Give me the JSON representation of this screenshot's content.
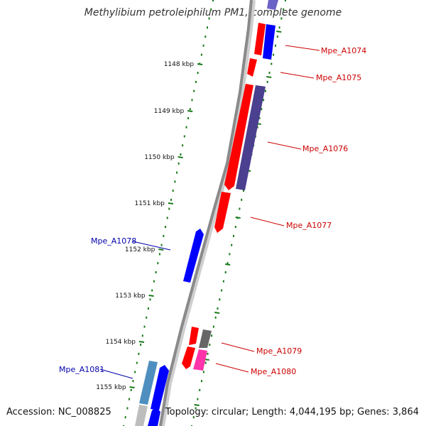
{
  "title": "Methylibium petroleiphilum PM1, complete genome",
  "accession_text": "Accession: NC_008825",
  "stats_text": "Topology: circular; Length: 4,044,195 bp; Genes: 3,864",
  "scale_ticks": [
    "1148 kbp",
    "1149 kbp",
    "1150 kbp",
    "1151 kbp",
    "1152 kbp",
    "1153 kbp",
    "1154 kbp",
    "1155 kbp"
  ],
  "genes_right": [
    {
      "label": "Mpe_A1074",
      "color": "#cc0000"
    },
    {
      "label": "Mpe_A1075",
      "color": "#cc0000"
    },
    {
      "label": "Mpe_A1076",
      "color": "#cc0000"
    },
    {
      "label": "Mpe_A1077",
      "color": "#cc0000"
    },
    {
      "label": "Mpe_A1079",
      "color": "#cc0000"
    },
    {
      "label": "Mpe_A1080",
      "color": "#cc0000"
    }
  ],
  "genes_left": [
    {
      "label": "Mpe_A1078",
      "color": "#0000aa"
    },
    {
      "label": "Mpe_A1081",
      "color": "#0000aa"
    }
  ],
  "colors": {
    "cds_forward": "#ff0000",
    "cds_reverse": "#0000ff",
    "cog_purple": "#4b3f8f",
    "cog_pink": "#ff33aa",
    "cog_grey": "#666666",
    "cog_lightblue": "#4f8fc0",
    "backbone": "#8a8a8a",
    "tick_green": "#1a7a1a"
  }
}
